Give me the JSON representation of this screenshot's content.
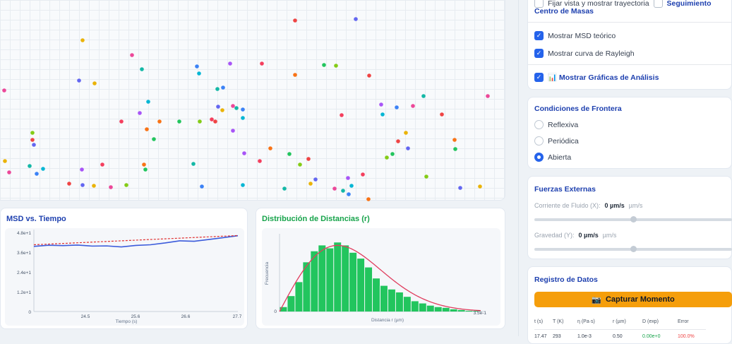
{
  "particle_palette": [
    "#ec4899",
    "#22c55e",
    "#3b82f6",
    "#ef4444",
    "#a855f7",
    "#eab308",
    "#f97316",
    "#14b8a6",
    "#84cc16",
    "#06b6d4",
    "#6366f1",
    "#f43f5e"
  ],
  "msd_chart": {
    "title": "MSD vs. Tiempo",
    "title_color": "#1e40af",
    "xlabel": "Tiempo (s)",
    "x_ticks": [
      "24.5",
      "25.6",
      "26.6",
      "27.7"
    ],
    "y_ticks": [
      "4.8e+1",
      "3.6e+1",
      "2.4e+1",
      "1.2e+1",
      "0"
    ],
    "x_range": [
      23.5,
      27.7
    ],
    "y_range": [
      0,
      48
    ],
    "measured_color": "#3b5bdb",
    "theory_color": "#e03131",
    "chart_data": {
      "type": "line",
      "x": [
        23.5,
        23.8,
        24.1,
        24.4,
        24.7,
        25.0,
        25.3,
        25.6,
        25.9,
        26.2,
        26.5,
        26.8,
        27.1,
        27.4,
        27.7
      ],
      "series": [
        {
          "values": [
            39.5,
            40.2,
            40.0,
            40.3,
            39.7,
            39.8,
            39.2,
            40.1,
            40.5,
            41.6,
            42.9,
            42.6,
            43.7,
            44.8,
            46.0
          ]
        },
        {
          "values": [
            40.5,
            40.9,
            41.3,
            41.7,
            42.1,
            42.5,
            42.9,
            43.3,
            43.7,
            44.1,
            44.5,
            44.9,
            45.3,
            45.7,
            46.1
          ]
        }
      ]
    }
  },
  "hist_chart": {
    "title": "Distribución de Distancias (r)",
    "title_color": "#16a34a",
    "ylabel": "Frecuencia",
    "xlabel": "Distancia r (µm)",
    "x_tick_end": "3.5e-1",
    "y_tick_zero": "0",
    "bar_color": "#22c55e",
    "curve_color": "#e03e5e",
    "chart_data": {
      "type": "bar",
      "values": [
        6,
        21,
        40,
        67,
        82,
        90,
        86,
        94,
        90,
        80,
        72,
        60,
        45,
        35,
        30,
        26,
        20,
        14,
        11,
        8,
        6,
        5,
        3,
        2,
        1,
        1
      ],
      "curve_peak_bar": 7
    }
  },
  "panel": {
    "top_row_label": "Fijar vista y mostrar trayectoria",
    "top_row_label_b": "Seguimiento",
    "center_mass_label": "Centro de Masas",
    "checks": [
      {
        "label": "Mostrar MSD teórico"
      },
      {
        "label": "Mostrar curva de Rayleigh"
      }
    ],
    "analysis_label": "📊 Mostrar Gráficas de Análisis",
    "boundary": {
      "title": "Condiciones de Frontera",
      "options": [
        "Reflexiva",
        "Periódica",
        "Abierta"
      ],
      "selected": 2
    },
    "forces": {
      "title": "Fuerzas Externas",
      "flow_label": "Corriente de Fluido (X):",
      "flow_value": "0 µm/s",
      "flow_unit": "µm/s",
      "gravity_label": "Gravedad (Y):",
      "gravity_value": "0 µm/s",
      "gravity_unit": "µm/s",
      "flow_level": 0.5,
      "gravity_level": 0.5
    },
    "log": {
      "title": "Registro de Datos",
      "capture_label": "Capturar Momento",
      "headers": [
        "t (s)",
        "T (K)",
        "η (Pa·s)",
        "r (µm)",
        "D (exp)",
        "Error"
      ],
      "row": [
        "17.47",
        "293",
        "1.0e-3",
        "0.50",
        "0.00e+0",
        "100.0%"
      ],
      "d_color": "#16a34a",
      "error_color": "#ef4444"
    }
  }
}
